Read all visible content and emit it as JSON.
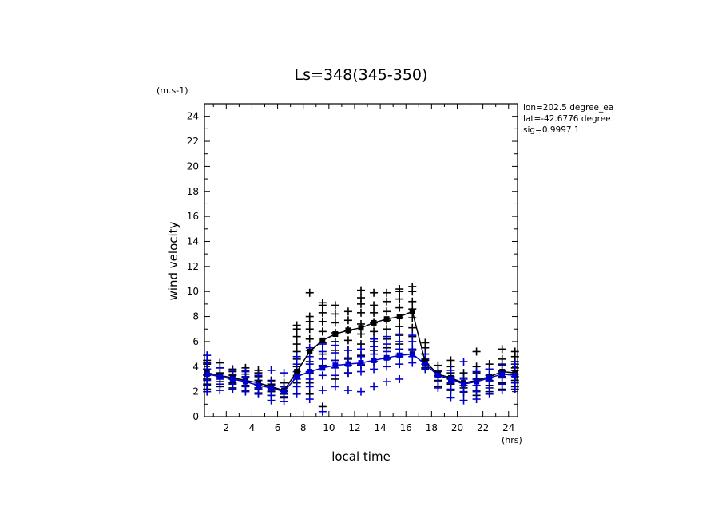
{
  "chart_data": {
    "type": "scatter",
    "title": "Ls=348(345-350)",
    "xlabel": "local time",
    "ylabel": "wind velocity",
    "x_unit": "(hrs)",
    "y_unit": "(m.s-1)",
    "xlim": [
      0.3,
      24.7
    ],
    "ylim": [
      0,
      25
    ],
    "xticks": [
      2,
      4,
      6,
      8,
      10,
      12,
      14,
      16,
      18,
      20,
      22,
      24
    ],
    "yticks": [
      0,
      2,
      4,
      6,
      8,
      10,
      12,
      14,
      16,
      18,
      20,
      22,
      24
    ],
    "info_lines": [
      "lon=202.5 degree_ea",
      "lat=-42.6776 degree",
      "sig=0.9997 1"
    ],
    "x": [
      0.5,
      1.5,
      2.5,
      3.5,
      4.5,
      5.5,
      6.5,
      7.5,
      8.5,
      9.5,
      10.5,
      11.5,
      12.5,
      13.5,
      14.5,
      15.5,
      16.5,
      17.5,
      18.5,
      19.5,
      20.5,
      21.5,
      22.5,
      23.5,
      24.5
    ],
    "series": [
      {
        "color": "#000000",
        "mean": [
          3.5,
          3.3,
          3.1,
          2.9,
          2.7,
          2.4,
          2.1,
          3.6,
          5.2,
          6.1,
          6.6,
          6.9,
          7.1,
          7.5,
          7.8,
          8.0,
          8.4,
          4.4,
          3.4,
          3.1,
          2.7,
          2.9,
          3.2,
          3.6,
          3.5
        ],
        "samples": [
          [
            2.2,
            2.6,
            3.0,
            3.4,
            3.8,
            4.2,
            4.5
          ],
          [
            2.4,
            2.8,
            3.2,
            3.5,
            3.9,
            4.3
          ],
          [
            2.3,
            2.7,
            3.0,
            3.3,
            3.6,
            3.8
          ],
          [
            2.1,
            2.5,
            2.8,
            3.1,
            3.4,
            3.7,
            3.9
          ],
          [
            1.9,
            2.3,
            2.6,
            2.9,
            3.2,
            3.5,
            3.7
          ],
          [
            1.7,
            2.0,
            2.3,
            2.6,
            2.9
          ],
          [
            1.5,
            1.8,
            2.1,
            2.4,
            2.7
          ],
          [
            2.7,
            3.3,
            4.0,
            4.6,
            5.2,
            5.8,
            6.4,
            7.0,
            7.3
          ],
          [
            1.8,
            2.7,
            3.5,
            4.4,
            5.3,
            6.2,
            7.0,
            7.6,
            8.0,
            9.9
          ],
          [
            0.8,
            4.1,
            5.0,
            5.9,
            6.8,
            7.6,
            8.3,
            8.9,
            9.1
          ],
          [
            3.0,
            4.5,
            5.3,
            6.0,
            6.7,
            7.5,
            8.2,
            8.9
          ],
          [
            3.5,
            4.6,
            5.3,
            6.1,
            6.9,
            7.7,
            8.4
          ],
          [
            4.1,
            4.9,
            5.8,
            6.6,
            7.4,
            8.3,
            9.0,
            9.5,
            10.1
          ],
          [
            4.4,
            5.3,
            6.0,
            6.8,
            7.5,
            8.3,
            8.9,
            9.9
          ],
          [
            4.7,
            5.5,
            6.2,
            7.0,
            7.7,
            8.4,
            9.2,
            9.9
          ],
          [
            5.0,
            5.8,
            6.5,
            7.2,
            7.9,
            8.7,
            9.4,
            10.0,
            10.2
          ],
          [
            5.3,
            6.4,
            7.1,
            7.9,
            8.6,
            9.2,
            10.0,
            10.4
          ],
          [
            3.9,
            4.5,
            5.0,
            5.5,
            5.9
          ],
          [
            2.4,
            2.9,
            3.3,
            3.7,
            4.1
          ],
          [
            2.1,
            2.6,
            3.0,
            3.5,
            4.0,
            4.5
          ],
          [
            1.9,
            2.3,
            2.7,
            3.1,
            3.5
          ],
          [
            1.7,
            2.1,
            2.5,
            3.0,
            3.5,
            4.0,
            5.2
          ],
          [
            2.0,
            2.5,
            2.9,
            3.3,
            3.8,
            4.2
          ],
          [
            2.2,
            2.7,
            3.2,
            3.7,
            4.2,
            4.6,
            5.4
          ],
          [
            2.4,
            2.9,
            3.4,
            3.9,
            4.4,
            4.8,
            5.2
          ]
        ]
      },
      {
        "color": "#0000cc",
        "mean": [
          3.4,
          3.2,
          3.0,
          2.8,
          2.5,
          2.3,
          2.0,
          3.2,
          3.6,
          3.9,
          4.1,
          4.2,
          4.3,
          4.5,
          4.7,
          4.9,
          5.0,
          4.2,
          3.3,
          3.0,
          2.6,
          2.8,
          3.1,
          3.4,
          3.3
        ],
        "samples": [
          [
            2.0,
            2.5,
            2.9,
            3.3,
            3.8,
            4.3,
            4.9
          ],
          [
            2.1,
            2.6,
            3.0,
            3.4,
            3.9
          ],
          [
            2.2,
            2.6,
            3.0,
            3.4,
            3.7
          ],
          [
            2.0,
            2.4,
            2.8,
            3.2,
            3.6
          ],
          [
            1.8,
            2.2,
            2.5,
            2.9,
            3.3
          ],
          [
            1.3,
            1.7,
            2.1,
            2.5,
            2.8,
            3.7
          ],
          [
            1.2,
            1.6,
            2.0,
            2.4,
            3.5
          ],
          [
            1.8,
            2.4,
            3.0,
            3.6,
            4.2,
            4.8
          ],
          [
            1.4,
            2.4,
            3.0,
            3.6,
            4.2,
            4.8,
            5.5
          ],
          [
            0.4,
            2.1,
            3.3,
            4.0,
            4.6,
            5.2,
            5.8
          ],
          [
            2.4,
            3.3,
            3.9,
            4.5,
            5.1,
            5.7
          ],
          [
            2.1,
            3.5,
            4.1,
            4.7,
            5.3
          ],
          [
            2.0,
            3.6,
            4.2,
            4.8,
            5.4
          ],
          [
            2.4,
            3.8,
            4.4,
            5.0,
            5.6,
            6.2
          ],
          [
            2.8,
            4.0,
            4.6,
            5.2,
            5.8,
            6.4
          ],
          [
            3.0,
            4.2,
            4.8,
            5.4,
            6.0,
            6.6
          ],
          [
            4.3,
            4.8,
            5.4,
            6.0,
            6.5
          ],
          [
            3.8,
            4.2,
            4.6,
            5.0
          ],
          [
            2.3,
            2.8,
            3.2,
            3.6
          ],
          [
            1.5,
            2.2,
            2.7,
            3.2,
            3.7
          ],
          [
            1.3,
            2.0,
            2.5,
            3.0,
            4.4
          ],
          [
            1.4,
            2.0,
            2.5,
            3.0,
            3.6
          ],
          [
            1.8,
            2.3,
            2.8,
            3.3,
            3.8
          ],
          [
            2.1,
            2.6,
            3.1,
            3.6,
            4.1
          ],
          [
            2.2,
            2.7,
            3.2,
            3.7,
            4.2
          ]
        ]
      }
    ]
  }
}
